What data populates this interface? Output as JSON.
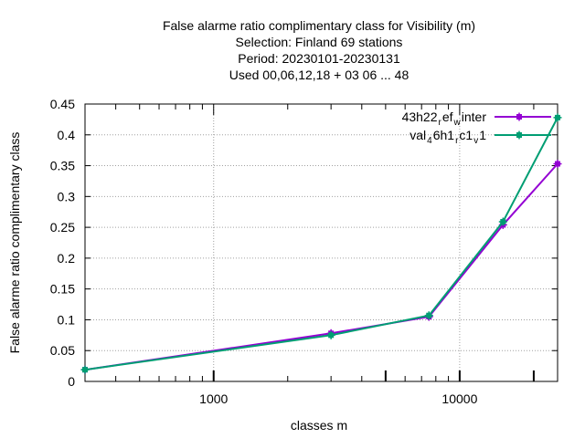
{
  "chart_data": {
    "type": "line",
    "title_lines": [
      "False alarme ratio complimentary class  for Visibility (m)",
      "Selection: Finland     69 stations",
      "Period: 20230101-20230131",
      "Used  00,06,12,18  + 03 06 ... 48"
    ],
    "xlabel": "classes m",
    "ylabel": "False alarme ratio complimentary class",
    "xscale": "log",
    "xlim": [
      300,
      25000
    ],
    "ylim": [
      0,
      0.45
    ],
    "x_ticks": [
      {
        "value": 1000,
        "label": "1000"
      },
      {
        "value": 10000,
        "label": "10000"
      }
    ],
    "y_ticks": [
      {
        "value": 0,
        "label": "0"
      },
      {
        "value": 0.05,
        "label": "0.05"
      },
      {
        "value": 0.1,
        "label": "0.1"
      },
      {
        "value": 0.15,
        "label": "0.15"
      },
      {
        "value": 0.2,
        "label": "0.2"
      },
      {
        "value": 0.25,
        "label": "0.25"
      },
      {
        "value": 0.3,
        "label": "0.3"
      },
      {
        "value": 0.35,
        "label": "0.35"
      },
      {
        "value": 0.4,
        "label": "0.4"
      },
      {
        "value": 0.45,
        "label": "0.45"
      }
    ],
    "grid": true,
    "legend_position": "top-right",
    "x": [
      300,
      3000,
      7500,
      15000,
      25000
    ],
    "series": [
      {
        "legend": {
          "base": "43h22",
          "subs": [
            {
              "sub": "r",
              "text": "ef"
            },
            {
              "sub": "w",
              "text": "inter"
            }
          ]
        },
        "color": "#9400d3",
        "values": [
          0.019,
          0.078,
          0.105,
          0.254,
          0.353
        ]
      },
      {
        "legend": {
          "base": "val",
          "subs": [
            {
              "sub": "4",
              "text": "6h1"
            },
            {
              "sub": "r",
              "text": "c1"
            },
            {
              "sub": "v",
              "text": "1"
            }
          ]
        },
        "color": "#009e73",
        "values": [
          0.019,
          0.075,
          0.107,
          0.259,
          0.428
        ]
      }
    ]
  }
}
